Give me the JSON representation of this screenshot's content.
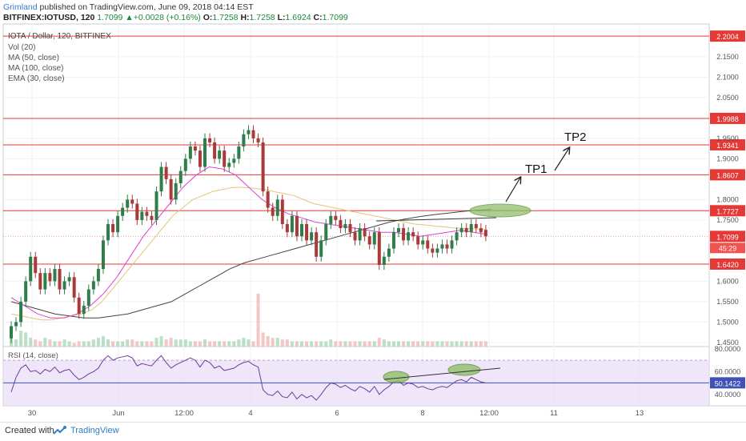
{
  "header": {
    "author": "Grimland",
    "published": "published on TradingView.com, June 09, 2018 04:14 EST",
    "symbol": "BITFINEX:IOTUSD, 120",
    "last": "1.7099",
    "change": "+0.0028 (+0.16%)",
    "open_label": "O:",
    "open": "1.7258",
    "high_label": "H:",
    "high": "1.7258",
    "low_label": "L:",
    "low": "1.6924",
    "close_label": "C:",
    "close": "1.7099"
  },
  "legend": {
    "title": "IOTA / Dollar, 120, BITFINEX",
    "items": [
      "Vol (20)",
      "MA (50, close)",
      "MA (100, close)",
      "EMA (30, close)"
    ]
  },
  "annotations": {
    "tp1": "TP1",
    "tp2": "TP2"
  },
  "countdown": "45:29",
  "footer": {
    "created_with": "Created with",
    "brand": "TradingView"
  },
  "colors": {
    "up": "#2e7d4a",
    "down": "#a83a3a",
    "level_line": "#e53935",
    "ma50": "#e6c27a",
    "ma100": "#444444",
    "ema30": "#e040d0",
    "rsi": "#6a3d9a",
    "rsi_band": "#e8dcf6",
    "ellipse": "#8fbf6a"
  },
  "chart_data": [
    {
      "type": "candlestick",
      "title": "IOTA / Dollar, 120, BITFINEX",
      "x_ticks": [
        "30",
        "Jun",
        "12:00",
        "4",
        "6",
        "8",
        "12:00",
        "11",
        "13"
      ],
      "y_ticks": [
        "2.1500",
        "2.1000",
        "2.0500",
        "1.9500",
        "1.9000",
        "1.8000",
        "1.7500",
        "1.6000",
        "1.5500",
        "1.5000",
        "1.4500"
      ],
      "ylim": [
        1.44,
        2.23
      ],
      "horizontal_levels": [
        "2.2004",
        "1.9988",
        "1.9341",
        "1.8607",
        "1.7727",
        "1.6420"
      ],
      "last_price_label": "1.7099",
      "ohlc_close": [
        1.49,
        1.5,
        1.55,
        1.6,
        1.66,
        1.62,
        1.58,
        1.62,
        1.6,
        1.63,
        1.58,
        1.6,
        1.61,
        1.56,
        1.52,
        1.54,
        1.58,
        1.6,
        1.63,
        1.7,
        1.74,
        1.72,
        1.76,
        1.78,
        1.8,
        1.79,
        1.75,
        1.77,
        1.76,
        1.75,
        1.82,
        1.88,
        1.85,
        1.8,
        1.84,
        1.87,
        1.9,
        1.93,
        1.92,
        1.88,
        1.95,
        1.94,
        1.9,
        1.92,
        1.88,
        1.89,
        1.9,
        1.93,
        1.96,
        1.97,
        1.95,
        1.94,
        1.82,
        1.78,
        1.76,
        1.8,
        1.74,
        1.72,
        1.76,
        1.71,
        1.74,
        1.7,
        1.72,
        1.66,
        1.7,
        1.74,
        1.76,
        1.75,
        1.73,
        1.74,
        1.72,
        1.7,
        1.73,
        1.71,
        1.69,
        1.72,
        1.64,
        1.66,
        1.68,
        1.72,
        1.73,
        1.7,
        1.72,
        1.71,
        1.69,
        1.7,
        1.68,
        1.67,
        1.68,
        1.69,
        1.68,
        1.7,
        1.72,
        1.73,
        1.72,
        1.74,
        1.73,
        1.72,
        1.71
      ],
      "ohlc_open": [
        1.46,
        1.49,
        1.5,
        1.55,
        1.6,
        1.66,
        1.62,
        1.58,
        1.62,
        1.6,
        1.63,
        1.58,
        1.6,
        1.61,
        1.56,
        1.52,
        1.54,
        1.58,
        1.6,
        1.63,
        1.7,
        1.74,
        1.72,
        1.76,
        1.78,
        1.8,
        1.79,
        1.75,
        1.77,
        1.76,
        1.75,
        1.82,
        1.88,
        1.85,
        1.8,
        1.84,
        1.87,
        1.9,
        1.93,
        1.92,
        1.88,
        1.95,
        1.94,
        1.9,
        1.92,
        1.88,
        1.89,
        1.9,
        1.93,
        1.96,
        1.97,
        1.95,
        1.94,
        1.82,
        1.78,
        1.76,
        1.8,
        1.74,
        1.72,
        1.76,
        1.71,
        1.74,
        1.7,
        1.72,
        1.66,
        1.7,
        1.74,
        1.76,
        1.75,
        1.73,
        1.74,
        1.72,
        1.7,
        1.73,
        1.71,
        1.69,
        1.72,
        1.64,
        1.66,
        1.68,
        1.72,
        1.73,
        1.7,
        1.72,
        1.71,
        1.69,
        1.7,
        1.68,
        1.67,
        1.68,
        1.69,
        1.68,
        1.7,
        1.72,
        1.73,
        1.72,
        1.74,
        1.73,
        1.7258
      ],
      "volume": [
        6,
        4,
        9,
        8,
        5,
        4,
        3,
        5,
        4,
        3,
        3,
        4,
        3,
        2,
        3,
        3,
        3,
        4,
        5,
        6,
        4,
        3,
        3,
        3,
        4,
        4,
        3,
        3,
        3,
        3,
        5,
        6,
        4,
        5,
        4,
        4,
        4,
        3,
        3,
        3,
        4,
        3,
        3,
        3,
        3,
        3,
        3,
        4,
        5,
        4,
        3,
        30,
        8,
        6,
        5,
        5,
        4,
        4,
        3,
        3,
        3,
        3,
        3,
        3,
        3,
        3,
        4,
        3,
        3,
        3,
        3,
        3,
        3,
        3,
        3,
        3,
        5,
        4,
        3,
        3,
        3,
        3,
        3,
        3,
        3,
        3,
        3,
        3,
        3,
        3,
        3,
        3,
        3,
        3,
        3,
        3,
        3,
        3,
        3
      ],
      "ma50_close": [
        1.52,
        1.515,
        1.51,
        1.505,
        1.505,
        1.51,
        1.515,
        1.52,
        1.53,
        1.55,
        1.58,
        1.61,
        1.64,
        1.67,
        1.7,
        1.73,
        1.76,
        1.78,
        1.8,
        1.81,
        1.82,
        1.825,
        1.83,
        1.83,
        1.828,
        1.825,
        1.82,
        1.815,
        1.81,
        1.8,
        1.79,
        1.785,
        1.78,
        1.775,
        1.77,
        1.765,
        1.76,
        1.755,
        1.75,
        1.745,
        1.74,
        1.738,
        1.735,
        1.733,
        1.73,
        1.73,
        1.728,
        1.727
      ],
      "ma100_close": [
        1.55,
        1.54,
        1.53,
        1.52,
        1.515,
        1.51,
        1.51,
        1.515,
        1.52,
        1.53,
        1.54,
        1.55,
        1.57,
        1.59,
        1.61,
        1.63,
        1.645,
        1.655,
        1.665,
        1.675,
        1.685,
        1.695,
        1.705,
        1.715,
        1.725,
        1.735,
        1.745,
        1.752,
        1.758,
        1.763,
        1.767,
        1.771,
        1.774,
        1.776
      ],
      "ema30_close": [
        1.56,
        1.54,
        1.52,
        1.51,
        1.51,
        1.52,
        1.54,
        1.57,
        1.61,
        1.66,
        1.71,
        1.75,
        1.79,
        1.83,
        1.86,
        1.88,
        1.875,
        1.86,
        1.83,
        1.8,
        1.78,
        1.765,
        1.755,
        1.745,
        1.74,
        1.735,
        1.73,
        1.725,
        1.72,
        1.72,
        1.715,
        1.71,
        1.715,
        1.72,
        1.725,
        1.72,
        1.715
      ]
    },
    {
      "type": "line",
      "title": "RSI (14, close)",
      "y_ticks": [
        "80.0000",
        "60.0000",
        "40.0000"
      ],
      "ylim": [
        30,
        82
      ],
      "last_value_label": "50.1422",
      "values": [
        42,
        55,
        63,
        66,
        60,
        61,
        58,
        62,
        60,
        64,
        59,
        61,
        62,
        57,
        53,
        55,
        58,
        60,
        63,
        70,
        74,
        70,
        72,
        73,
        74,
        72,
        65,
        67,
        66,
        65,
        70,
        74,
        68,
        63,
        66,
        68,
        70,
        72,
        70,
        64,
        70,
        68,
        63,
        65,
        61,
        62,
        63,
        66,
        68,
        69,
        66,
        64,
        44,
        40,
        39,
        43,
        38,
        37,
        42,
        36,
        40,
        37,
        39,
        35,
        40,
        46,
        50,
        49,
        46,
        48,
        45,
        43,
        47,
        45,
        42,
        47,
        40,
        44,
        47,
        51,
        52,
        48,
        50,
        49,
        46,
        47,
        45,
        44,
        46,
        47,
        46,
        49,
        52,
        53,
        51,
        55,
        53,
        51,
        50
      ]
    }
  ]
}
